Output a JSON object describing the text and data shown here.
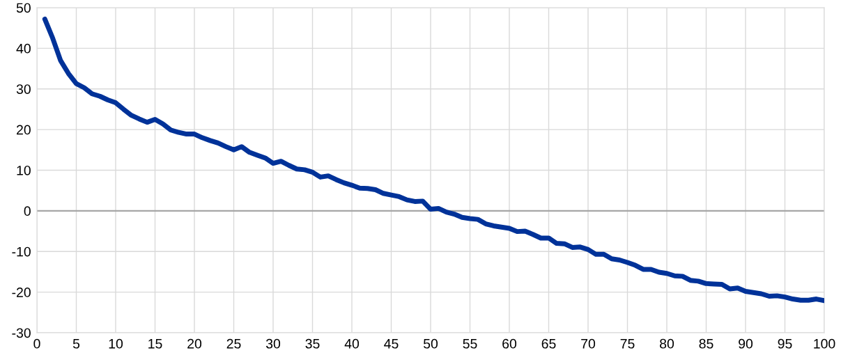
{
  "chart_data": {
    "type": "line",
    "x": [
      1,
      2,
      3,
      4,
      5,
      6,
      7,
      8,
      9,
      10,
      11,
      12,
      13,
      14,
      15,
      16,
      17,
      18,
      19,
      20,
      21,
      22,
      23,
      24,
      25,
      26,
      27,
      28,
      29,
      30,
      31,
      32,
      33,
      34,
      35,
      36,
      37,
      38,
      39,
      40,
      41,
      42,
      43,
      44,
      45,
      46,
      47,
      48,
      49,
      50,
      51,
      52,
      53,
      54,
      55,
      56,
      57,
      58,
      59,
      60,
      61,
      62,
      63,
      64,
      65,
      66,
      67,
      68,
      69,
      70,
      71,
      72,
      73,
      74,
      75,
      76,
      77,
      78,
      79,
      80,
      81,
      82,
      83,
      84,
      85,
      86,
      87,
      88,
      89,
      90,
      91,
      92,
      93,
      94,
      95,
      96,
      97,
      98,
      99,
      100
    ],
    "series": [
      {
        "color": "#003299",
        "values": [
          47.2,
          42.5,
          37,
          33.8,
          31.3,
          30.3,
          28.8,
          28.2,
          27.3,
          26.6,
          25,
          23.5,
          22.6,
          21.8,
          22.5,
          21.4,
          19.9,
          19.3,
          18.9,
          18.9,
          18,
          17.3,
          16.7,
          15.8,
          15,
          15.8,
          14.4,
          13.7,
          13,
          11.7,
          12.2,
          11.2,
          10.3,
          10.1,
          9.5,
          8.3,
          8.6,
          7.7,
          6.9,
          6.3,
          5.6,
          5.5,
          5.2,
          4.3,
          3.9,
          3.5,
          2.7,
          2.3,
          2.4,
          0.4,
          0.6,
          -0.3,
          -0.8,
          -1.6,
          -1.9,
          -2.1,
          -3.2,
          -3.7,
          -4,
          -4.3,
          -5.1,
          -5,
          -5.8,
          -6.7,
          -6.7,
          -8,
          -8.1,
          -9,
          -8.9,
          -9.5,
          -10.7,
          -10.7,
          -11.8,
          -12.1,
          -12.7,
          -13.4,
          -14.4,
          -14.4,
          -15.1,
          -15.4,
          -16,
          -16.1,
          -17.1,
          -17.3,
          -17.9,
          -18,
          -18.1,
          -19.2,
          -19,
          -19.8,
          -20.1,
          -20.4,
          -21,
          -20.9,
          -21.2,
          -21.7,
          -22,
          -22,
          -21.7,
          -22.1
        ]
      }
    ],
    "xlim": [
      0,
      100
    ],
    "xticks": [
      0,
      5,
      10,
      15,
      20,
      25,
      30,
      35,
      40,
      45,
      50,
      55,
      60,
      65,
      70,
      75,
      80,
      85,
      90,
      95,
      100
    ],
    "ylim": [
      -30,
      50
    ],
    "yticks": [
      -30,
      -20,
      -10,
      0,
      10,
      20,
      30,
      40,
      50
    ],
    "ref_lines": [
      {
        "axis": "y",
        "value": 0,
        "color": "#a6a6a6"
      }
    ],
    "grid": true,
    "legend": false,
    "marker": "none",
    "line_style": "solid"
  }
}
